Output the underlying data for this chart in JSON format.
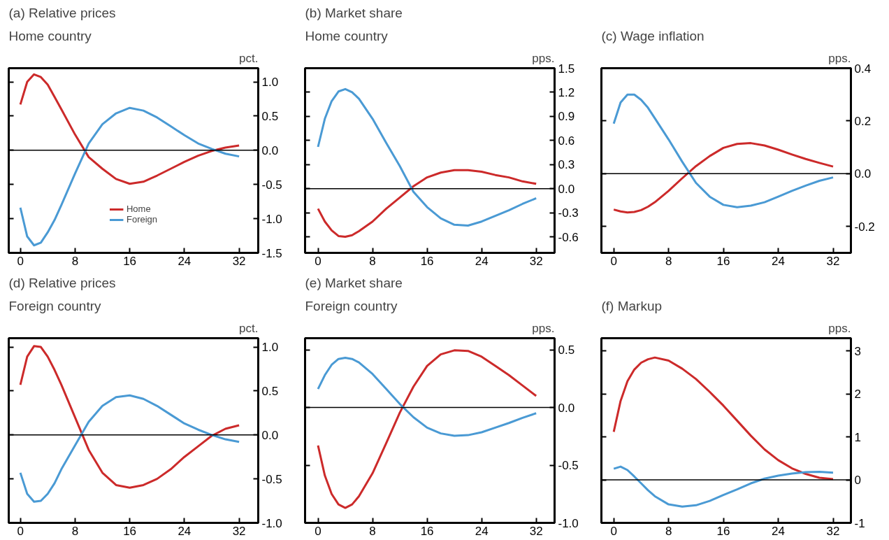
{
  "chart_data": [
    {
      "type": "line",
      "title": "(a) Relative prices",
      "subtitle": "Home country",
      "ylabel": "pct.",
      "legend": "bottom",
      "grid": false,
      "x": [
        0,
        1,
        2,
        3,
        4,
        5,
        6,
        8,
        10,
        12,
        14,
        16,
        18,
        20,
        22,
        24,
        26,
        28,
        30,
        32
      ],
      "xlim": [
        -1.7,
        34.8
      ],
      "xticks": [
        0,
        8,
        16,
        24,
        32
      ],
      "ylim": [
        -1.5,
        1.2
      ],
      "yticks": [
        {
          "value": -1.5,
          "label": "-1.5"
        },
        {
          "value": -1.0,
          "label": "-1.0"
        },
        {
          "value": -0.5,
          "label": "-0.5"
        },
        {
          "value": 0,
          "label": "0.0"
        },
        {
          "value": 0.5,
          "label": "0.5"
        },
        {
          "value": 1.0,
          "label": "1.0"
        }
      ],
      "ref_lines": [
        {
          "axis": "y",
          "value": 0,
          "color": "#000000"
        }
      ],
      "series": [
        {
          "name": "Home",
          "color": "#cc2a2a",
          "values": [
            0.67,
            1.0,
            1.11,
            1.07,
            0.96,
            0.78,
            0.6,
            0.23,
            -0.1,
            -0.27,
            -0.42,
            -0.49,
            -0.46,
            -0.37,
            -0.27,
            -0.17,
            -0.08,
            -0.01,
            0.04,
            0.07
          ]
        },
        {
          "name": "Foreign",
          "color": "#4a9ad4",
          "values": [
            -0.84,
            -1.26,
            -1.39,
            -1.35,
            -1.2,
            -1.02,
            -0.8,
            -0.34,
            0.1,
            0.38,
            0.54,
            0.62,
            0.58,
            0.48,
            0.35,
            0.22,
            0.1,
            0.02,
            -0.05,
            -0.09
          ]
        }
      ]
    },
    {
      "type": "line",
      "title": "(b) Market share",
      "subtitle": "Home country",
      "ylabel": "pps.",
      "grid": false,
      "x": [
        0,
        1,
        2,
        3,
        4,
        5,
        6,
        8,
        10,
        12,
        14,
        16,
        18,
        20,
        22,
        24,
        26,
        28,
        30,
        32
      ],
      "xlim": [
        -1.9,
        34.7
      ],
      "xticks": [
        0,
        8,
        16,
        24,
        32
      ],
      "ylim": [
        -0.8,
        1.5
      ],
      "yticks": [
        {
          "value": -0.6,
          "label": "-0.6"
        },
        {
          "value": -0.3,
          "label": "-0.3"
        },
        {
          "value": 0,
          "label": "0.0"
        },
        0.3,
        0.6,
        0.9,
        1.2,
        1.5
      ],
      "ref_lines": [
        {
          "axis": "y",
          "value": 0,
          "color": "#000000"
        }
      ],
      "series": [
        {
          "color": "#cc2a2a",
          "values": [
            -0.25,
            -0.41,
            -0.52,
            -0.59,
            -0.6,
            -0.58,
            -0.53,
            -0.41,
            -0.25,
            -0.11,
            0.03,
            0.14,
            0.2,
            0.23,
            0.23,
            0.21,
            0.17,
            0.14,
            0.09,
            0.06
          ]
        },
        {
          "color": "#4a9ad4",
          "values": [
            0.52,
            0.87,
            1.09,
            1.21,
            1.24,
            1.2,
            1.12,
            0.87,
            0.57,
            0.28,
            -0.04,
            -0.23,
            -0.37,
            -0.45,
            -0.46,
            -0.41,
            -0.34,
            -0.27,
            -0.19,
            -0.12
          ]
        }
      ]
    },
    {
      "type": "line",
      "title": "(c) Wage inflation",
      "ylabel": "pps.",
      "grid": false,
      "x": [
        0,
        1,
        2,
        3,
        4,
        5,
        6,
        8,
        10,
        12,
        14,
        16,
        18,
        20,
        22,
        24,
        26,
        28,
        30,
        32
      ],
      "xlim": [
        -1.8,
        34.6
      ],
      "xticks": [
        0,
        8,
        16,
        24,
        32
      ],
      "ylim": [
        -0.3,
        0.4
      ],
      "yticks": [
        {
          "value": -0.2,
          "label": "-0.2"
        },
        {
          "value": 0,
          "label": "0.0"
        },
        0.2,
        0.4
      ],
      "ref_lines": [
        {
          "axis": "y",
          "value": 0,
          "color": "#000000"
        }
      ],
      "series": [
        {
          "color": "#cc2a2a",
          "values": [
            -0.136,
            -0.143,
            -0.147,
            -0.145,
            -0.138,
            -0.125,
            -0.108,
            -0.065,
            -0.017,
            0.029,
            0.067,
            0.098,
            0.113,
            0.116,
            0.107,
            0.091,
            0.073,
            0.056,
            0.041,
            0.027
          ]
        },
        {
          "color": "#4a9ad4",
          "values": [
            0.19,
            0.27,
            0.3,
            0.3,
            0.28,
            0.25,
            0.21,
            0.13,
            0.045,
            -0.035,
            -0.087,
            -0.118,
            -0.127,
            -0.121,
            -0.108,
            -0.087,
            -0.065,
            -0.045,
            -0.027,
            -0.014
          ]
        }
      ]
    },
    {
      "type": "line",
      "title": "(d) Relative prices",
      "subtitle": "Foreign country",
      "ylabel": "pct.",
      "grid": false,
      "x": [
        0,
        1,
        2,
        3,
        4,
        5,
        6,
        8,
        10,
        12,
        14,
        16,
        18,
        20,
        22,
        24,
        26,
        28,
        30,
        32
      ],
      "xlim": [
        -1.7,
        34.8
      ],
      "xticks": [
        0,
        8,
        16,
        24,
        32
      ],
      "ylim": [
        -1.0,
        1.1
      ],
      "yticks": [
        {
          "value": -1.0,
          "label": "-1.0"
        },
        {
          "value": -0.5,
          "label": "-0.5"
        },
        {
          "value": 0,
          "label": "0.0"
        },
        0.5,
        {
          "value": 1.0,
          "label": "1.0"
        }
      ],
      "ref_lines": [
        {
          "axis": "y",
          "value": 0,
          "color": "#000000"
        }
      ],
      "series": [
        {
          "color": "#cc2a2a",
          "values": [
            0.57,
            0.89,
            1.01,
            1.0,
            0.89,
            0.74,
            0.57,
            0.2,
            -0.17,
            -0.43,
            -0.57,
            -0.6,
            -0.57,
            -0.5,
            -0.39,
            -0.25,
            -0.13,
            -0.01,
            0.07,
            0.11
          ]
        },
        {
          "color": "#4a9ad4",
          "values": [
            -0.43,
            -0.67,
            -0.76,
            -0.75,
            -0.67,
            -0.55,
            -0.39,
            -0.12,
            0.15,
            0.33,
            0.43,
            0.45,
            0.41,
            0.33,
            0.23,
            0.13,
            0.06,
            0.0,
            -0.05,
            -0.08
          ]
        }
      ]
    },
    {
      "type": "line",
      "title": "(e) Market share",
      "subtitle": "Foreign country",
      "ylabel": "pps.",
      "grid": false,
      "x": [
        0,
        1,
        2,
        3,
        4,
        5,
        6,
        8,
        10,
        12,
        14,
        16,
        18,
        20,
        22,
        24,
        26,
        28,
        30,
        32
      ],
      "xlim": [
        -1.9,
        34.7
      ],
      "xticks": [
        0,
        8,
        16,
        24,
        32
      ],
      "ylim": [
        -1.0,
        0.6
      ],
      "yticks": [
        {
          "value": -1.0,
          "label": "-1.0"
        },
        {
          "value": -0.5,
          "label": "-0.5"
        },
        {
          "value": 0,
          "label": "0.0"
        },
        0.5
      ],
      "ref_lines": [
        {
          "axis": "y",
          "value": 0,
          "color": "#000000"
        }
      ],
      "series": [
        {
          "color": "#cc2a2a",
          "values": [
            -0.33,
            -0.59,
            -0.75,
            -0.84,
            -0.87,
            -0.84,
            -0.77,
            -0.57,
            -0.31,
            -0.045,
            0.18,
            0.36,
            0.46,
            0.495,
            0.49,
            0.44,
            0.36,
            0.28,
            0.19,
            0.1
          ]
        },
        {
          "color": "#4a9ad4",
          "values": [
            0.16,
            0.28,
            0.37,
            0.42,
            0.43,
            0.42,
            0.39,
            0.29,
            0.16,
            0.03,
            -0.085,
            -0.175,
            -0.225,
            -0.245,
            -0.24,
            -0.215,
            -0.175,
            -0.135,
            -0.09,
            -0.05
          ]
        }
      ]
    },
    {
      "type": "line",
      "title": "(f) Markup",
      "ylabel": "pps.",
      "grid": false,
      "x": [
        0,
        1,
        2,
        3,
        4,
        5,
        6,
        8,
        10,
        12,
        14,
        16,
        18,
        20,
        22,
        24,
        26,
        28,
        30,
        32
      ],
      "xlim": [
        -1.8,
        34.6
      ],
      "xticks": [
        0,
        8,
        16,
        24,
        32
      ],
      "ylim": [
        -1.0,
        3.3
      ],
      "yticks": [
        -1,
        0,
        1,
        2,
        3
      ],
      "ref_lines": [
        {
          "axis": "y",
          "value": 0,
          "color": "#000000"
        }
      ],
      "series": [
        {
          "color": "#cc2a2a",
          "values": [
            1.12,
            1.84,
            2.3,
            2.57,
            2.73,
            2.81,
            2.85,
            2.78,
            2.59,
            2.35,
            2.05,
            1.73,
            1.38,
            1.03,
            0.71,
            0.46,
            0.27,
            0.14,
            0.05,
            0.02
          ]
        },
        {
          "color": "#4a9ad4",
          "values": [
            0.26,
            0.31,
            0.23,
            0.08,
            -0.08,
            -0.24,
            -0.38,
            -0.57,
            -0.62,
            -0.59,
            -0.49,
            -0.35,
            -0.22,
            -0.08,
            0.03,
            0.1,
            0.15,
            0.18,
            0.19,
            0.17
          ]
        }
      ]
    }
  ]
}
